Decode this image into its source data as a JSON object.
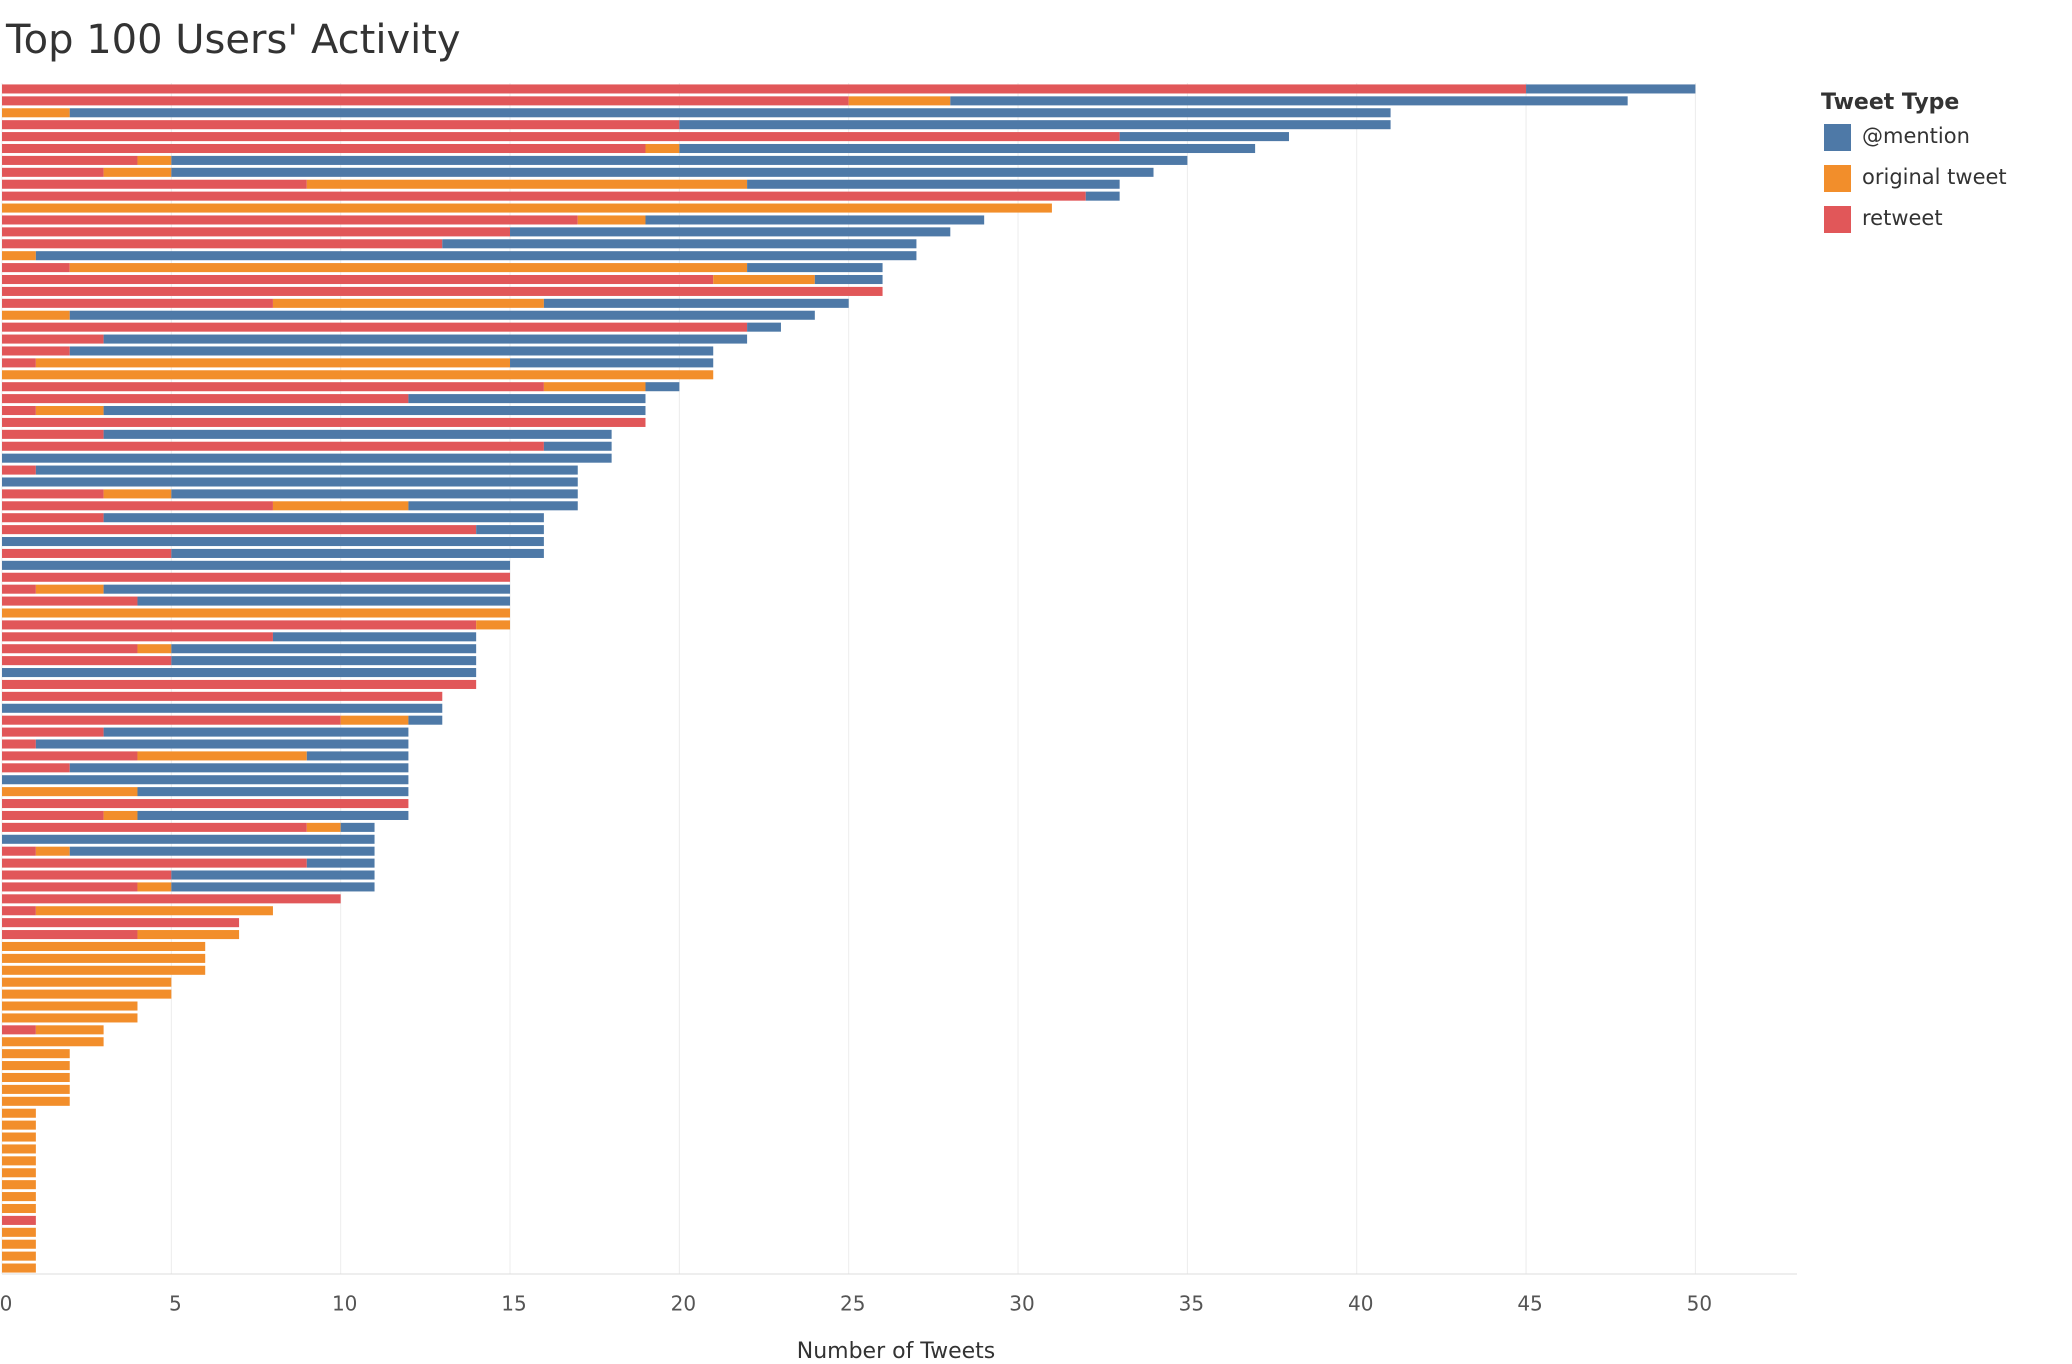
{
  "chart_data": {
    "type": "stacked_bar_horizontal",
    "title": "Top 100 Users' Activity",
    "x_label": "Number of Tweets",
    "legend_title": "Tweet Type",
    "legend": "right",
    "grid": true,
    "xlim": [
      0,
      53
    ],
    "xticks": [
      0,
      5,
      10,
      15,
      20,
      25,
      30,
      35,
      40,
      45,
      50
    ],
    "categories": [
      null,
      null,
      null,
      null,
      null,
      null,
      null,
      null,
      null,
      null,
      null,
      null,
      null,
      null,
      null,
      null,
      null,
      null,
      null,
      null,
      null,
      null,
      null,
      null,
      null,
      null,
      null,
      null,
      null,
      null,
      null,
      null,
      null,
      null,
      null,
      null,
      null,
      null,
      null,
      null,
      null,
      null,
      null,
      null,
      null,
      null,
      null,
      null,
      null,
      null,
      null,
      null,
      null,
      null,
      null,
      null,
      null,
      null,
      null,
      null,
      null,
      null,
      null,
      null,
      null,
      null,
      null,
      null,
      null,
      null,
      null,
      null,
      null,
      null,
      null,
      null,
      null,
      null,
      null,
      null,
      null,
      null,
      null,
      null,
      null,
      null,
      null,
      null,
      null,
      null,
      null,
      null,
      null,
      null,
      null,
      null,
      null,
      null,
      null,
      null
    ],
    "series": [
      {
        "name": "@mention",
        "color": "#4e79a7",
        "values": [
          5,
          20,
          39,
          21,
          5,
          17,
          30,
          29,
          11,
          1,
          0,
          10,
          13,
          14,
          26,
          4,
          2,
          0,
          9,
          22,
          1,
          19,
          19,
          6,
          0,
          1,
          7,
          16,
          0,
          15,
          2,
          18,
          16,
          17,
          12,
          5,
          13,
          2,
          16,
          11,
          15,
          0,
          12,
          11,
          0,
          0,
          6,
          9,
          9,
          14,
          0,
          0,
          13,
          1,
          9,
          11,
          3,
          10,
          12,
          8,
          0,
          8,
          1,
          11,
          9,
          2,
          6,
          6,
          0,
          0,
          0,
          0,
          0,
          0,
          0,
          0,
          0,
          0,
          0,
          0,
          0,
          0,
          0,
          0,
          0,
          0,
          0,
          0,
          0,
          0,
          0,
          0,
          0,
          0,
          0,
          0,
          0,
          0,
          0,
          0
        ]
      },
      {
        "name": "original tweet",
        "color": "#f28e2b",
        "values": [
          0,
          3,
          2,
          0,
          0,
          1,
          1,
          2,
          13,
          0,
          31,
          2,
          0,
          0,
          1,
          20,
          3,
          0,
          8,
          2,
          0,
          0,
          0,
          14,
          21,
          3,
          0,
          2,
          0,
          0,
          0,
          0,
          0,
          0,
          2,
          4,
          0,
          0,
          0,
          0,
          0,
          0,
          2,
          0,
          15,
          1,
          0,
          1,
          0,
          0,
          0,
          0,
          0,
          2,
          0,
          0,
          5,
          0,
          0,
          4,
          0,
          1,
          1,
          0,
          1,
          0,
          0,
          1,
          0,
          7,
          0,
          3,
          6,
          6,
          6,
          5,
          5,
          4,
          4,
          2,
          3,
          2,
          2,
          2,
          2,
          2,
          1,
          1,
          1,
          1,
          1,
          1,
          1,
          1,
          1,
          0,
          1,
          1,
          1,
          1
        ]
      },
      {
        "name": "retweet",
        "color": "#e15759",
        "values": [
          45,
          25,
          0,
          20,
          33,
          19,
          4,
          3,
          9,
          32,
          0,
          17,
          15,
          13,
          0,
          2,
          21,
          26,
          8,
          0,
          22,
          3,
          2,
          1,
          0,
          16,
          12,
          1,
          19,
          3,
          16,
          0,
          1,
          0,
          3,
          8,
          3,
          14,
          0,
          5,
          0,
          15,
          1,
          4,
          0,
          14,
          8,
          4,
          5,
          0,
          14,
          13,
          0,
          10,
          3,
          1,
          4,
          2,
          0,
          0,
          12,
          3,
          9,
          0,
          1,
          9,
          5,
          4,
          10,
          1,
          7,
          4,
          0,
          0,
          0,
          0,
          0,
          0,
          0,
          1,
          0,
          0,
          0,
          0,
          0,
          0,
          0,
          0,
          0,
          0,
          0,
          0,
          0,
          0,
          0,
          1,
          0,
          0,
          0,
          0
        ]
      }
    ]
  }
}
